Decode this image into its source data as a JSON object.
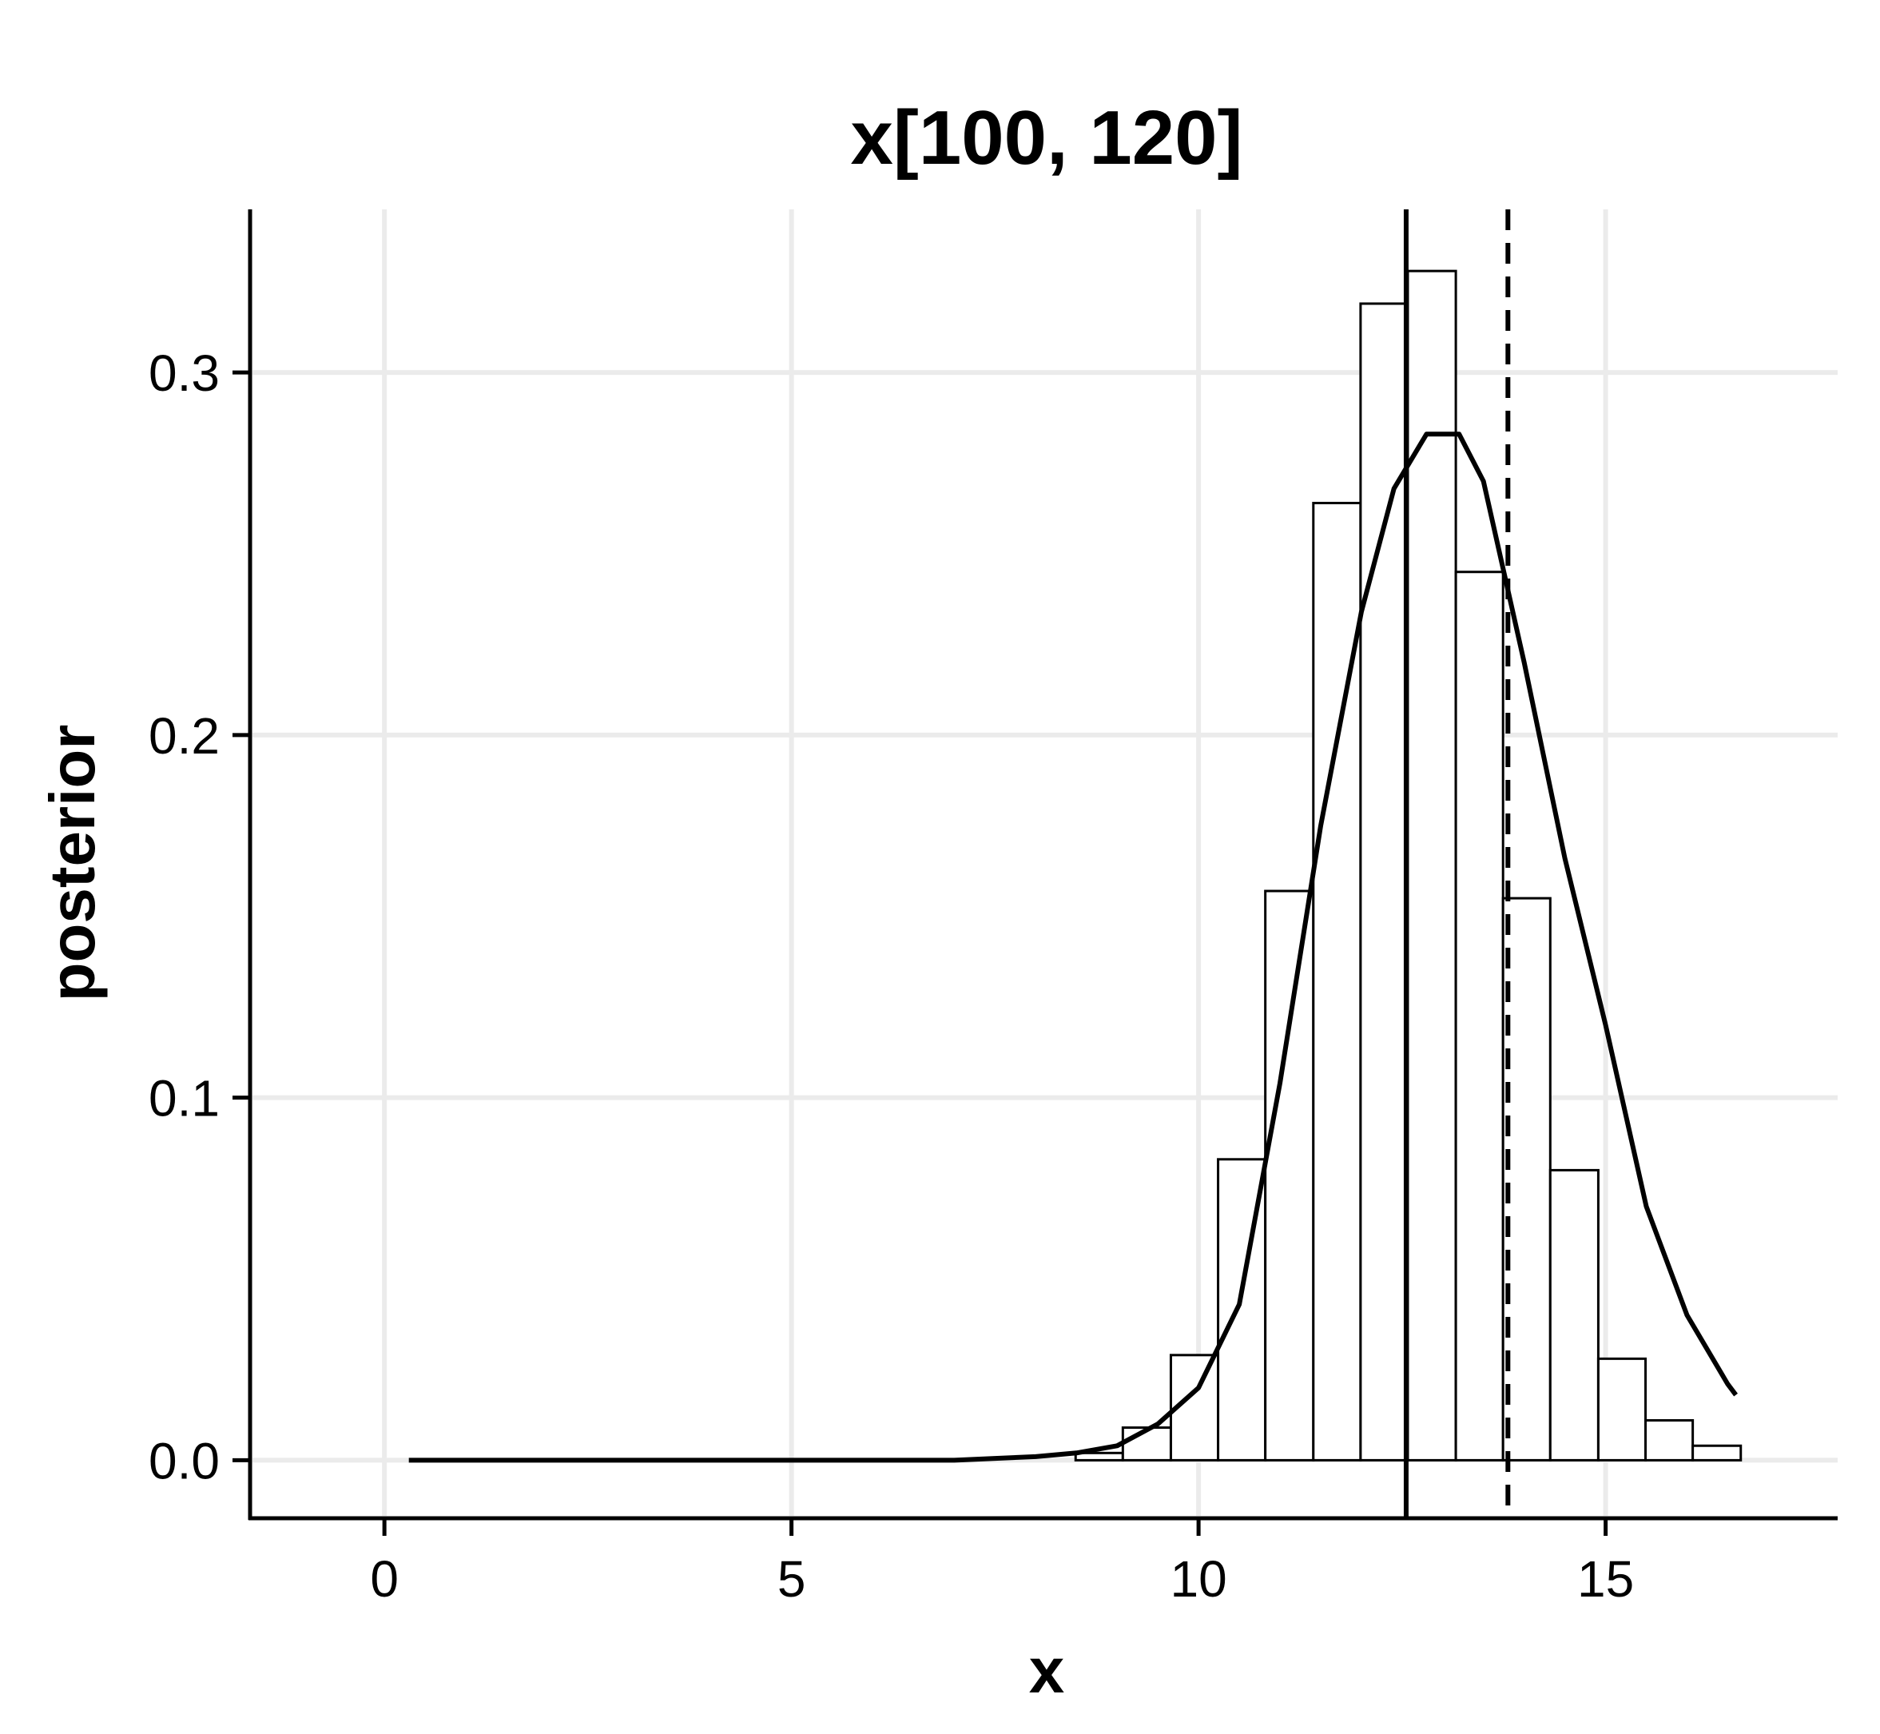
{
  "chart_data": {
    "type": "bar",
    "title": "x[100, 120]",
    "xlabel": "x",
    "ylabel": "posterior",
    "xlim": [
      -1.65,
      17.85
    ],
    "ylim": [
      -0.016,
      0.345
    ],
    "x_ticks": [
      0,
      5,
      10,
      15
    ],
    "x_tick_labels": [
      "0",
      "5",
      "10",
      "15"
    ],
    "y_ticks": [
      0.0,
      0.1,
      0.2,
      0.3
    ],
    "y_tick_labels": [
      "0.0",
      "0.1",
      "0.2",
      "0.3"
    ],
    "grid": true,
    "histogram": {
      "bin_width": 0.583,
      "bins": [
        {
          "x0": 8.49,
          "x1": 9.07,
          "density": 0.002
        },
        {
          "x0": 9.07,
          "x1": 9.66,
          "density": 0.009
        },
        {
          "x0": 9.66,
          "x1": 10.24,
          "density": 0.029
        },
        {
          "x0": 10.24,
          "x1": 10.82,
          "density": 0.083
        },
        {
          "x0": 10.82,
          "x1": 11.41,
          "density": 0.157
        },
        {
          "x0": 11.41,
          "x1": 11.99,
          "density": 0.264
        },
        {
          "x0": 11.99,
          "x1": 12.57,
          "density": 0.319
        },
        {
          "x0": 12.57,
          "x1": 13.16,
          "density": 0.328
        },
        {
          "x0": 13.16,
          "x1": 13.74,
          "density": 0.245
        },
        {
          "x0": 13.74,
          "x1": 14.32,
          "density": 0.155
        },
        {
          "x0": 14.32,
          "x1": 14.91,
          "density": 0.08
        },
        {
          "x0": 14.91,
          "x1": 15.49,
          "density": 0.028
        },
        {
          "x0": 15.49,
          "x1": 16.07,
          "density": 0.011
        },
        {
          "x0": 16.07,
          "x1": 16.66,
          "density": 0.004
        }
      ]
    },
    "series": [
      {
        "type": "line",
        "style": "solid",
        "x": [
          0.3,
          2.0,
          4.0,
          6.0,
          7.0,
          7.5,
          8.0,
          8.5,
          9.0,
          9.5,
          10.0,
          10.5,
          11.0,
          11.5,
          12.0,
          12.4,
          12.8,
          13.2,
          13.5,
          14.0,
          14.5,
          15.0,
          15.5,
          16.0,
          16.5,
          16.6
        ],
        "y": [
          0.0,
          0.0,
          0.0,
          0.0,
          0.0,
          0.0005,
          0.001,
          0.002,
          0.004,
          0.01,
          0.02,
          0.043,
          0.104,
          0.175,
          0.234,
          0.268,
          0.283,
          0.283,
          0.27,
          0.22,
          0.166,
          0.12,
          0.07,
          0.04,
          0.021,
          0.018
        ]
      }
    ],
    "reference_lines": [
      {
        "x": 12.55,
        "style": "solid"
      },
      {
        "x": 13.8,
        "style": "dashed"
      }
    ]
  }
}
